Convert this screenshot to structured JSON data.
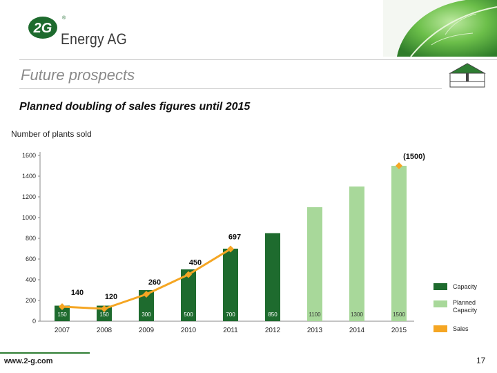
{
  "header": {
    "logo_mark": "2G",
    "logo_text": "Energy AG",
    "logo_color": "#1e6b2e"
  },
  "title": "Future prospects",
  "subtitle": "Planned doubling of sales figures until 2015",
  "chart_data": {
    "type": "bar",
    "ylabel": "Number of plants sold",
    "ylim": [
      0,
      1600
    ],
    "yticks": [
      0,
      200,
      400,
      600,
      800,
      1000,
      1200,
      1400,
      1600
    ],
    "categories": [
      "2007",
      "2008",
      "2009",
      "2010",
      "2011",
      "2012",
      "2013",
      "2014",
      "2015"
    ],
    "series": [
      {
        "name": "Capacity",
        "kind": "bar",
        "color": "#1e6b2e",
        "values": [
          150,
          150,
          300,
          500,
          700,
          850,
          null,
          null,
          null
        ],
        "labels": [
          "150",
          "150",
          "300",
          "500",
          "700",
          "850",
          "",
          "",
          ""
        ]
      },
      {
        "name": "Planned Capacity",
        "kind": "bar",
        "color": "#a8d89a",
        "values": [
          null,
          null,
          null,
          null,
          null,
          null,
          1100,
          1300,
          1500
        ],
        "labels": [
          "",
          "",
          "",
          "",
          "",
          "",
          "1100",
          "1300",
          "1500"
        ]
      },
      {
        "name": "Sales",
        "kind": "line",
        "color": "#f5a623",
        "values": [
          140,
          120,
          260,
          450,
          697,
          null,
          null,
          null,
          1500
        ],
        "labels": [
          "140",
          "120",
          "260",
          "450",
          "697",
          "",
          "",
          "",
          "(1500)"
        ]
      }
    ],
    "legend_position": "right"
  },
  "footer": {
    "url": "www.2-g.com",
    "page": "17"
  }
}
